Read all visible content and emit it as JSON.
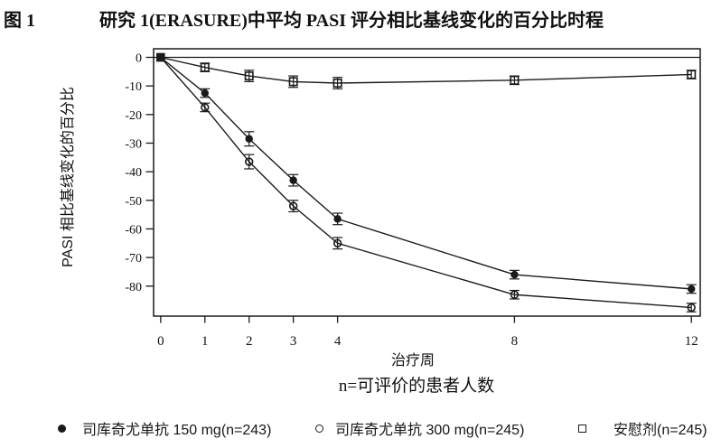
{
  "figure": {
    "label": "图 1",
    "title": "研究 1(ERASURE)中平均 PASI 评分相比基线变化的百分比时程"
  },
  "chart_data": {
    "type": "line",
    "title": "研究 1(ERASURE)中平均 PASI 评分相比基线变化的百分比时程",
    "xlabel": "治疗周",
    "ylabel": "PASI 相比基线变化的百分比",
    "note": "n=可评价的患者人数",
    "x": [
      0,
      1,
      2,
      3,
      4,
      8,
      12
    ],
    "y_ticks": [
      0,
      -10,
      -20,
      -30,
      -40,
      -50,
      -60,
      -70,
      -80
    ],
    "xlim": [
      -0.16,
      12.2
    ],
    "ylim": [
      -90.5,
      3
    ],
    "grid": false,
    "zero_reference_line": true,
    "error_bars": true,
    "origin_marker": "filled-square",
    "legend_position": "bottom",
    "series": [
      {
        "name": "司库奇尤单抗 150 mg(n=243)",
        "marker": "filled-circle",
        "values": [
          0,
          -12.5,
          -28.5,
          -43,
          -56.5,
          -76,
          -81
        ],
        "errors": [
          0,
          1.5,
          2.5,
          2,
          2,
          1.5,
          1.5
        ]
      },
      {
        "name": "司库奇尤单抗 300 mg(n=245)",
        "marker": "open-circle",
        "values": [
          0,
          -17.5,
          -36.5,
          -52,
          -65,
          -83,
          -87.5
        ],
        "errors": [
          0,
          1.5,
          2.5,
          2,
          2,
          1.5,
          1.5
        ]
      },
      {
        "name": "安慰剂(n=245)",
        "marker": "open-square",
        "values": [
          0,
          -3.5,
          -6.5,
          -8.5,
          -9,
          -8,
          -6
        ],
        "errors": [
          0,
          1.5,
          2,
          2,
          2,
          1.5,
          1.5
        ]
      }
    ],
    "colors": {
      "foreground": "#1a1a1a",
      "background": "#ffffff"
    }
  },
  "legend": {
    "items": [
      {
        "marker": "filled-circle",
        "label": "司库奇尤单抗 150 mg(n=243)"
      },
      {
        "marker": "open-circle",
        "label": "司库奇尤单抗 300 mg(n=245)"
      },
      {
        "marker": "open-square",
        "label": "安慰剂(n=245)"
      }
    ]
  }
}
